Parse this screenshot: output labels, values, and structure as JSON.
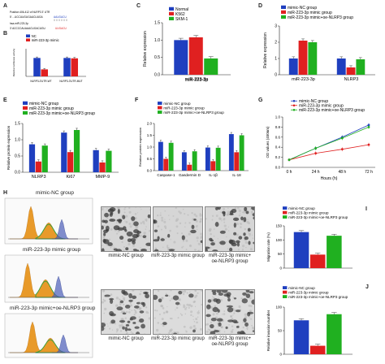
{
  "panelA": {
    "label": "A",
    "line1": "Position 406-412 of NLRP3 3' UTR",
    "line1_seq": "5'  ...UCCUUGUGAUCUUGA",
    "line1_match": "AAUGACU",
    "line2": "hsa-miR-223-3p",
    "line2_seq": "3'  ACCCCAUAAACUGACUGU",
    "line2_match": "UUGACU"
  },
  "panelB": {
    "label": "B",
    "legend": [
      "NC",
      "miR-223-3p mimic"
    ],
    "ylabel": "Relative luciferase activity",
    "chart_data": {
      "type": "bar",
      "categories": [
        "NLRP3-3'UTR-WT",
        "NLRP3-3'UTR-MUT"
      ],
      "series": [
        {
          "name": "NC",
          "values": [
            1.0,
            1.0
          ]
        },
        {
          "name": "miR-223-3p mimic",
          "values": [
            0.38,
            0.98
          ]
        }
      ],
      "ylim": [
        0,
        1.5
      ],
      "colors": [
        "#1f3fbf",
        "#e02020"
      ]
    }
  },
  "panelC": {
    "label": "C",
    "legend": [
      "Normal",
      "K562",
      "SKM-1"
    ],
    "ylabel": "Relative expression",
    "xlabel": "miR-223-3p",
    "chart_data": {
      "type": "bar",
      "categories": [
        "miR-223-3p"
      ],
      "series": [
        {
          "name": "Normal",
          "values": [
            1.0
          ]
        },
        {
          "name": "K562",
          "values": [
            1.08
          ]
        },
        {
          "name": "SKM-1",
          "values": [
            0.47
          ]
        }
      ],
      "ylim": [
        0,
        1.5
      ],
      "yticks": [
        "0.0",
        "0.5",
        "1.0",
        "1.5"
      ],
      "colors": [
        "#1f3fbf",
        "#e02020",
        "#20b020"
      ]
    }
  },
  "panelD": {
    "label": "D",
    "legend": [
      "mimic-NC group",
      "miR-223-3p mimic group",
      "miR-223-3p mimic+oe-NLRP3 group"
    ],
    "ylabel": "Relative expression",
    "chart_data": {
      "type": "bar",
      "categories": [
        "miR-223-3p",
        "NLRP3"
      ],
      "series": [
        {
          "name": "mimic-NC group",
          "values": [
            1.0,
            1.0
          ]
        },
        {
          "name": "miR-223-3p mimic group",
          "values": [
            2.1,
            0.45
          ]
        },
        {
          "name": "miR-223-3p mimic+oe-NLRP3 group",
          "values": [
            2.0,
            0.95
          ]
        }
      ],
      "ylim": [
        0,
        3
      ],
      "yticks": [
        "0",
        "1",
        "2",
        "3"
      ],
      "colors": [
        "#1f3fbf",
        "#e02020",
        "#20b020"
      ]
    }
  },
  "panelE": {
    "label": "E",
    "legend": [
      "mimic-NC group",
      "miR-223-3p mimic group",
      "miR-223-3p mimic+oe-NLRP3 group"
    ],
    "ylabel": "Relative protein expression",
    "chart_data": {
      "type": "bar",
      "categories": [
        "NLRP3",
        "Ki67",
        "MMP-9"
      ],
      "series": [
        {
          "name": "mimic-NC group",
          "values": [
            0.86,
            1.22,
            0.68
          ]
        },
        {
          "name": "miR-223-3p mimic group",
          "values": [
            0.33,
            0.62,
            0.3
          ]
        },
        {
          "name": "miR-223-3p mimic+oe-NLRP3 group",
          "values": [
            0.82,
            1.3,
            0.66
          ]
        }
      ],
      "ylim": [
        0,
        1.5
      ],
      "yticks": [
        "0.0",
        "0.5",
        "1.0",
        "1.5"
      ],
      "colors": [
        "#1f3fbf",
        "#e02020",
        "#20b020"
      ]
    }
  },
  "panelF": {
    "label": "F",
    "legend": [
      "mimic-NC group",
      "miR-223-3p mimic group",
      "miR-223-3p mimic+oe-NLRP3 group"
    ],
    "ylabel": "Relative protein expression",
    "chart_data": {
      "type": "bar",
      "categories": [
        "Caspase-1",
        "Gasdermin D",
        "IL-1β",
        "IL-18"
      ],
      "series": [
        {
          "name": "mimic-NC group",
          "values": [
            1.22,
            0.78,
            0.98,
            1.55
          ]
        },
        {
          "name": "miR-223-3p mimic group",
          "values": [
            0.5,
            0.25,
            0.4,
            0.78
          ]
        },
        {
          "name": "miR-223-3p mimic+oe-NLRP3 group",
          "values": [
            1.18,
            0.82,
            0.97,
            1.5
          ]
        }
      ],
      "ylim": [
        0,
        2.0
      ],
      "yticks": [
        "0.0",
        "0.5",
        "1.0",
        "1.5",
        "2.0"
      ],
      "colors": [
        "#1f3fbf",
        "#e02020",
        "#20b020"
      ]
    }
  },
  "panelG": {
    "label": "G",
    "legend": [
      "mimic-NC group",
      "miR-223-3p mimic group",
      "miR-223-3p mimic+oe-NLRP3 group"
    ],
    "ylabel": "OD values (450nm)",
    "xlabel": "Hours (h)",
    "chart_data": {
      "type": "line",
      "categories": [
        "0 h",
        "24 h",
        "48 h",
        "72 h"
      ],
      "series": [
        {
          "name": "mimic-NC group",
          "values": [
            0.15,
            0.38,
            0.6,
            0.84
          ]
        },
        {
          "name": "miR-223-3p mimic group",
          "values": [
            0.15,
            0.28,
            0.36,
            0.45
          ]
        },
        {
          "name": "miR-223-3p mimic+oe-NLRP3 group",
          "values": [
            0.15,
            0.38,
            0.58,
            0.8
          ]
        }
      ],
      "ylim": [
        0.0,
        1.0
      ],
      "yticks": [
        "0.0",
        "0.2",
        "0.4",
        "0.6",
        "0.8",
        "1.0"
      ],
      "colors": [
        "#1f3fbf",
        "#e02020",
        "#20b020"
      ]
    }
  },
  "panelH": {
    "label": "H",
    "groups": [
      "mimic-NC group",
      "miR-223-3p mimic group",
      "miR-223-3p mimic+oe-NLRP3 group"
    ],
    "captions_top": [
      "mimic-NC group",
      "miR-223-3p mimic group",
      "miR-223-3p mimic+ oe-NLRP3 group"
    ],
    "captions_bottom": [
      "mimic-NC group",
      "miR-223-3p mimic group",
      "miR-223-3p mimic+ oe-NLRP3 group"
    ]
  },
  "panelI": {
    "label": "I",
    "legend": [
      "mimic-NC group",
      "miR-223-3p mimic group",
      "miR-223-3p mimic+oe-NLRP3 group"
    ],
    "ylabel": "Migration rate (%)",
    "chart_data": {
      "type": "bar",
      "categories": [
        ""
      ],
      "series": [
        {
          "name": "mimic-NC group",
          "values": [
            128
          ]
        },
        {
          "name": "miR-223-3p mimic group",
          "values": [
            48
          ]
        },
        {
          "name": "miR-223-3p mimic+oe-NLRP3 group",
          "values": [
            115
          ]
        }
      ],
      "ylim": [
        0,
        150
      ],
      "yticks": [
        "0",
        "50",
        "100",
        "150"
      ],
      "colors": [
        "#1f3fbf",
        "#e02020",
        "#20b020"
      ]
    }
  },
  "panelJ": {
    "label": "J",
    "legend": [
      "mimic-NC group",
      "miR-223-3p mimic group",
      "miR-223-3p mimic+oe-NLRP3 group"
    ],
    "ylabel": "Relative invasion number",
    "chart_data": {
      "type": "bar",
      "categories": [
        ""
      ],
      "series": [
        {
          "name": "mimic-NC group",
          "values": [
            72
          ]
        },
        {
          "name": "miR-223-3p mimic group",
          "values": [
            18
          ]
        },
        {
          "name": "miR-223-3p mimic+oe-NLRP3 group",
          "values": [
            85
          ]
        }
      ],
      "ylim": [
        0,
        100
      ],
      "yticks": [
        "0",
        "50",
        "100"
      ],
      "colors": [
        "#1f3fbf",
        "#e02020",
        "#20b020"
      ]
    }
  }
}
